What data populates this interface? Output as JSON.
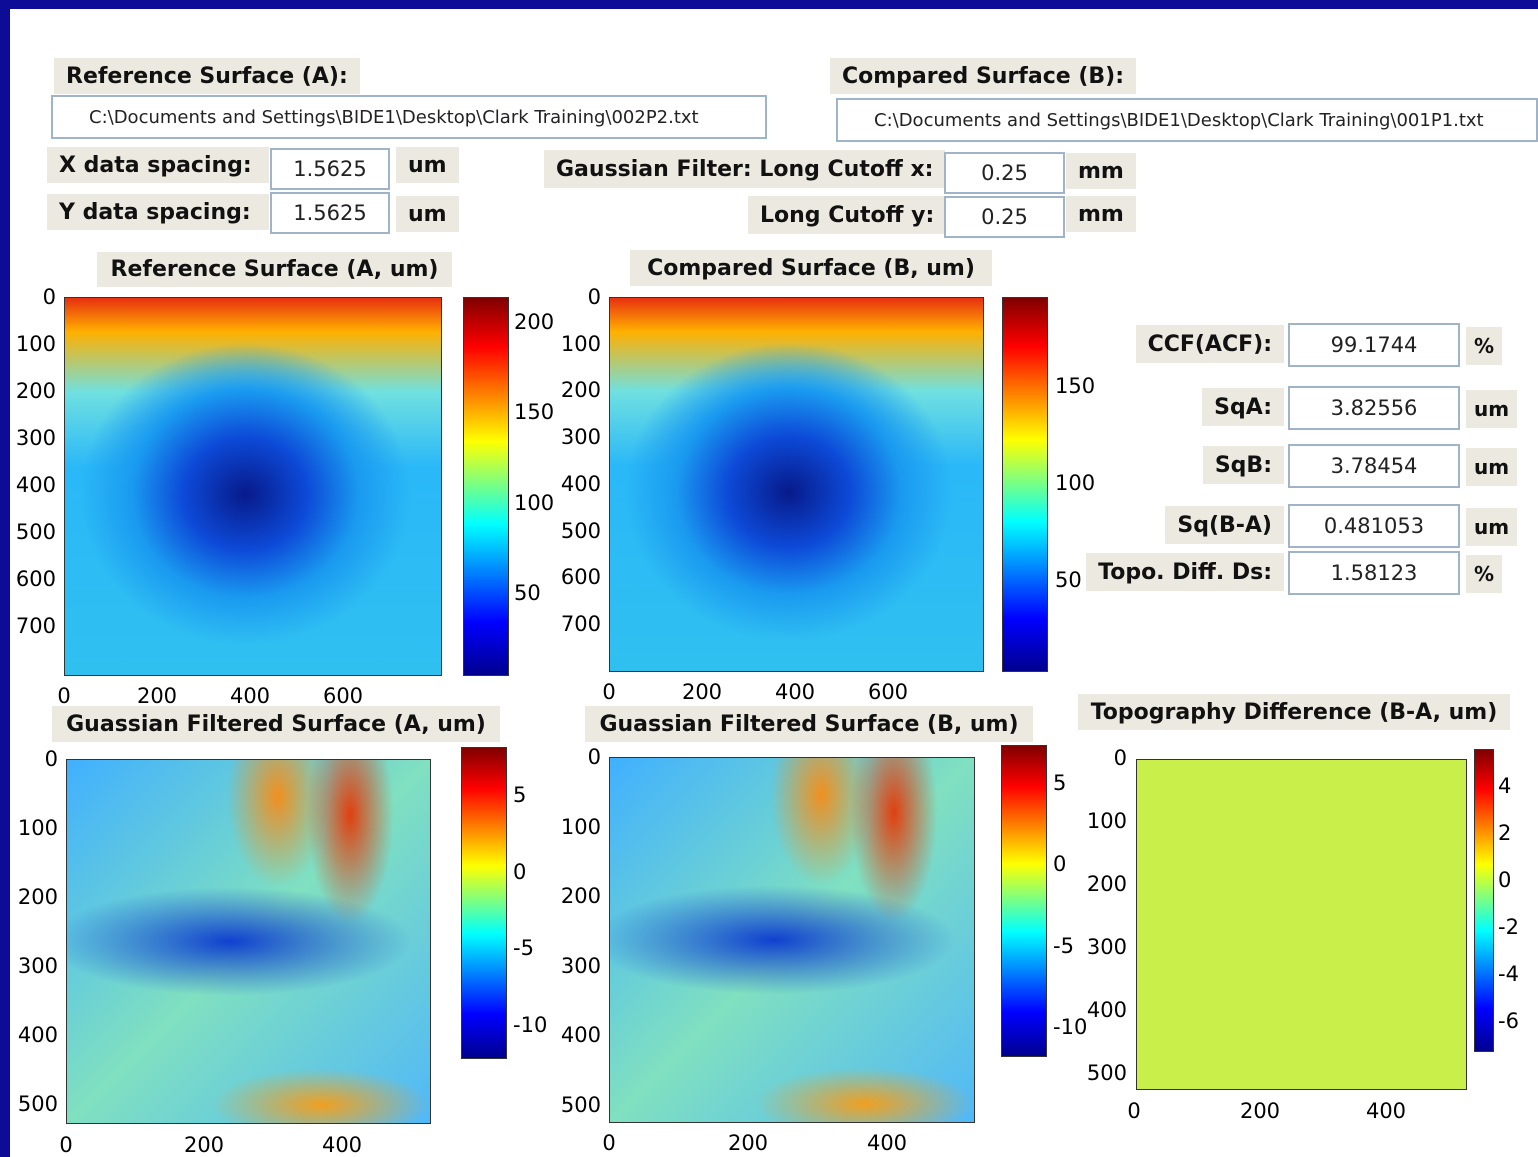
{
  "inputs": {
    "reference_label": "Reference Surface (A):",
    "reference_path": "C:\\Documents and Settings\\BIDE1\\Desktop\\Clark Training\\002P2.txt",
    "compared_label": "Compared Surface (B):",
    "compared_path": "C:\\Documents and Settings\\BIDE1\\Desktop\\Clark Training\\001P1.txt",
    "x_spacing": {
      "label": "X data spacing:",
      "value": 1.5625,
      "unit": "um"
    },
    "y_spacing": {
      "label": "Y data spacing:",
      "value": 1.5625,
      "unit": "um"
    },
    "cutoff_x": {
      "label": "Gaussian Filter: Long Cutoff x:",
      "value": 0.25,
      "unit": "mm"
    },
    "cutoff_y": {
      "label": "Long Cutoff y:",
      "value": 0.25,
      "unit": "mm"
    }
  },
  "plots": [
    {
      "title": "Reference Surface (A, um)",
      "xticks": [
        0,
        200,
        400,
        600
      ],
      "yticks": [
        0,
        100,
        200,
        300,
        400,
        500,
        600,
        700
      ],
      "colorbar_ticks": [
        50,
        100,
        150,
        200
      ]
    },
    {
      "title": "Compared Surface (B, um)",
      "xticks": [
        0,
        200,
        400,
        600
      ],
      "yticks": [
        0,
        100,
        200,
        300,
        400,
        500,
        600,
        700
      ],
      "colorbar_ticks": [
        50,
        100,
        150
      ]
    },
    {
      "title": "Guassian Filtered Surface (A, um)",
      "xticks": [
        0,
        200,
        400
      ],
      "yticks": [
        0,
        100,
        200,
        300,
        400,
        500
      ],
      "colorbar_ticks": [
        -10,
        -5,
        0,
        5
      ]
    },
    {
      "title": "Guassian Filtered Surface (B, um)",
      "xticks": [
        0,
        200,
        400
      ],
      "yticks": [
        0,
        100,
        200,
        300,
        400,
        500
      ],
      "colorbar_ticks": [
        -10,
        -5,
        0,
        5
      ]
    },
    {
      "title": "Topography Difference (B-A, um)",
      "xticks": [
        0,
        200,
        400
      ],
      "yticks": [
        0,
        100,
        200,
        300,
        400,
        500
      ],
      "colorbar_ticks": [
        -6,
        -4,
        -2,
        0,
        2,
        4
      ]
    }
  ],
  "results": [
    {
      "label": "CCF(ACF):",
      "value": 99.1744,
      "unit": "%"
    },
    {
      "label": "SqA:",
      "value": 3.82556,
      "unit": "um"
    },
    {
      "label": "SqB:",
      "value": 3.78454,
      "unit": "um"
    },
    {
      "label": "Sq(B-A)",
      "value": 0.481053,
      "unit": "um"
    },
    {
      "label": "Topo. Diff. Ds:",
      "value": 1.58123,
      "unit": "%"
    }
  ]
}
